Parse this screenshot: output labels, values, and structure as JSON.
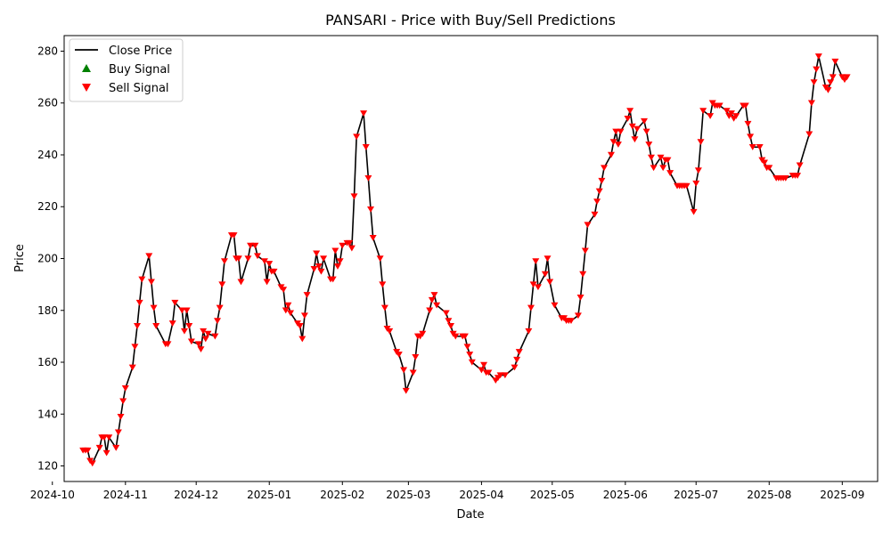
{
  "chart_data": {
    "type": "line",
    "title": "PANSARI - Price with Buy/Sell Predictions",
    "xlabel": "Date",
    "ylabel": "Price",
    "xlim": [
      "2024-10-06",
      "2025-09-16"
    ],
    "ylim": [
      114,
      286
    ],
    "grid": false,
    "legend_position": "top-left",
    "x_ticks": [
      "2024-10",
      "2024-11",
      "2024-12",
      "2025-01",
      "2025-02",
      "2025-03",
      "2025-04",
      "2025-05",
      "2025-06",
      "2025-07",
      "2025-08",
      "2025-09"
    ],
    "x_tick_dates": [
      "2024-10-01",
      "2024-11-01",
      "2024-12-01",
      "2025-01-01",
      "2025-02-01",
      "2025-03-01",
      "2025-04-01",
      "2025-05-01",
      "2025-06-01",
      "2025-07-01",
      "2025-08-01",
      "2025-09-01"
    ],
    "y_ticks": [
      120,
      140,
      160,
      180,
      200,
      220,
      240,
      260,
      280
    ],
    "colors": {
      "close": "#000000",
      "buy": "#008000",
      "sell": "#ff0000"
    },
    "series": [
      {
        "name": "Close Price",
        "kind": "line",
        "points": [
          [
            "2024-10-14",
            126
          ],
          [
            "2024-10-15",
            126
          ],
          [
            "2024-10-16",
            126
          ],
          [
            "2024-10-17",
            122
          ],
          [
            "2024-10-18",
            121
          ],
          [
            "2024-10-21",
            127
          ],
          [
            "2024-10-22",
            131
          ],
          [
            "2024-10-23",
            131
          ],
          [
            "2024-10-24",
            125
          ],
          [
            "2024-10-25",
            131
          ],
          [
            "2024-10-28",
            127
          ],
          [
            "2024-10-29",
            133
          ],
          [
            "2024-10-30",
            139
          ],
          [
            "2024-10-31",
            145
          ],
          [
            "2024-11-01",
            150
          ],
          [
            "2024-11-04",
            158
          ],
          [
            "2024-11-05",
            166
          ],
          [
            "2024-11-06",
            174
          ],
          [
            "2024-11-07",
            183
          ],
          [
            "2024-11-08",
            192
          ],
          [
            "2024-11-11",
            201
          ],
          [
            "2024-11-12",
            191
          ],
          [
            "2024-11-13",
            181
          ],
          [
            "2024-11-14",
            174
          ],
          [
            "2024-11-18",
            167
          ],
          [
            "2024-11-19",
            167
          ],
          [
            "2024-11-21",
            175
          ],
          [
            "2024-11-22",
            183
          ],
          [
            "2024-11-25",
            180
          ],
          [
            "2024-11-26",
            172
          ],
          [
            "2024-11-27",
            180
          ],
          [
            "2024-11-28",
            174
          ],
          [
            "2024-11-29",
            168
          ],
          [
            "2024-12-02",
            167
          ],
          [
            "2024-12-03",
            165
          ],
          [
            "2024-12-04",
            172
          ],
          [
            "2024-12-05",
            169
          ],
          [
            "2024-12-06",
            171
          ],
          [
            "2024-12-09",
            170
          ],
          [
            "2024-12-10",
            176
          ],
          [
            "2024-12-11",
            181
          ],
          [
            "2024-12-12",
            190
          ],
          [
            "2024-12-13",
            199
          ],
          [
            "2024-12-16",
            209
          ],
          [
            "2024-12-17",
            209
          ],
          [
            "2024-12-18",
            200
          ],
          [
            "2024-12-19",
            200
          ],
          [
            "2024-12-20",
            191
          ],
          [
            "2024-12-23",
            200
          ],
          [
            "2024-12-24",
            205
          ],
          [
            "2024-12-26",
            205
          ],
          [
            "2024-12-27",
            201
          ],
          [
            "2024-12-30",
            199
          ],
          [
            "2024-12-31",
            191
          ],
          [
            "2025-01-01",
            198
          ],
          [
            "2025-01-02",
            195
          ],
          [
            "2025-01-03",
            195
          ],
          [
            "2025-01-06",
            189
          ],
          [
            "2025-01-07",
            188
          ],
          [
            "2025-01-08",
            180
          ],
          [
            "2025-01-09",
            182
          ],
          [
            "2025-01-10",
            179
          ],
          [
            "2025-01-13",
            175
          ],
          [
            "2025-01-14",
            174
          ],
          [
            "2025-01-15",
            169
          ],
          [
            "2025-01-16",
            178
          ],
          [
            "2025-01-17",
            186
          ],
          [
            "2025-01-20",
            196
          ],
          [
            "2025-01-21",
            202
          ],
          [
            "2025-01-22",
            197
          ],
          [
            "2025-01-23",
            195
          ],
          [
            "2025-01-24",
            200
          ],
          [
            "2025-01-27",
            192
          ],
          [
            "2025-01-28",
            192
          ],
          [
            "2025-01-29",
            203
          ],
          [
            "2025-01-30",
            197
          ],
          [
            "2025-01-31",
            199
          ],
          [
            "2025-02-01",
            205
          ],
          [
            "2025-02-03",
            206
          ],
          [
            "2025-02-04",
            206
          ],
          [
            "2025-02-05",
            204
          ],
          [
            "2025-02-06",
            224
          ],
          [
            "2025-02-07",
            247
          ],
          [
            "2025-02-10",
            256
          ],
          [
            "2025-02-11",
            243
          ],
          [
            "2025-02-12",
            231
          ],
          [
            "2025-02-13",
            219
          ],
          [
            "2025-02-14",
            208
          ],
          [
            "2025-02-17",
            200
          ],
          [
            "2025-02-18",
            190
          ],
          [
            "2025-02-19",
            181
          ],
          [
            "2025-02-20",
            173
          ],
          [
            "2025-02-21",
            172
          ],
          [
            "2025-02-24",
            164
          ],
          [
            "2025-02-25",
            163
          ],
          [
            "2025-02-27",
            157
          ],
          [
            "2025-02-28",
            149
          ],
          [
            "2025-03-03",
            156
          ],
          [
            "2025-03-04",
            162
          ],
          [
            "2025-03-05",
            170
          ],
          [
            "2025-03-06",
            170
          ],
          [
            "2025-03-07",
            171
          ],
          [
            "2025-03-10",
            180
          ],
          [
            "2025-03-11",
            184
          ],
          [
            "2025-03-12",
            186
          ],
          [
            "2025-03-13",
            182
          ],
          [
            "2025-03-17",
            179
          ],
          [
            "2025-03-18",
            176
          ],
          [
            "2025-03-19",
            174
          ],
          [
            "2025-03-20",
            171
          ],
          [
            "2025-03-21",
            170
          ],
          [
            "2025-03-24",
            170
          ],
          [
            "2025-03-25",
            170
          ],
          [
            "2025-03-26",
            166
          ],
          [
            "2025-03-27",
            163
          ],
          [
            "2025-03-28",
            160
          ],
          [
            "2025-04-01",
            157
          ],
          [
            "2025-04-02",
            159
          ],
          [
            "2025-04-03",
            156
          ],
          [
            "2025-04-04",
            156
          ],
          [
            "2025-04-07",
            153
          ],
          [
            "2025-04-08",
            154
          ],
          [
            "2025-04-09",
            155
          ],
          [
            "2025-04-11",
            155
          ],
          [
            "2025-04-15",
            158
          ],
          [
            "2025-04-16",
            161
          ],
          [
            "2025-04-17",
            164
          ],
          [
            "2025-04-21",
            172
          ],
          [
            "2025-04-22",
            181
          ],
          [
            "2025-04-23",
            190
          ],
          [
            "2025-04-24",
            199
          ],
          [
            "2025-04-25",
            189
          ],
          [
            "2025-04-28",
            194
          ],
          [
            "2025-04-29",
            200
          ],
          [
            "2025-04-30",
            191
          ],
          [
            "2025-05-02",
            182
          ],
          [
            "2025-05-05",
            177
          ],
          [
            "2025-05-06",
            177
          ],
          [
            "2025-05-07",
            176
          ],
          [
            "2025-05-08",
            176
          ],
          [
            "2025-05-09",
            176
          ],
          [
            "2025-05-12",
            178
          ],
          [
            "2025-05-13",
            185
          ],
          [
            "2025-05-14",
            194
          ],
          [
            "2025-05-15",
            203
          ],
          [
            "2025-05-16",
            213
          ],
          [
            "2025-05-19",
            217
          ],
          [
            "2025-05-20",
            222
          ],
          [
            "2025-05-21",
            226
          ],
          [
            "2025-05-22",
            230
          ],
          [
            "2025-05-23",
            235
          ],
          [
            "2025-05-26",
            240
          ],
          [
            "2025-05-27",
            245
          ],
          [
            "2025-05-28",
            249
          ],
          [
            "2025-05-29",
            244
          ],
          [
            "2025-05-30",
            249
          ],
          [
            "2025-06-02",
            254
          ],
          [
            "2025-06-03",
            257
          ],
          [
            "2025-06-04",
            251
          ],
          [
            "2025-06-05",
            246
          ],
          [
            "2025-06-06",
            250
          ],
          [
            "2025-06-09",
            253
          ],
          [
            "2025-06-10",
            249
          ],
          [
            "2025-06-11",
            244
          ],
          [
            "2025-06-12",
            239
          ],
          [
            "2025-06-13",
            235
          ],
          [
            "2025-06-16",
            239
          ],
          [
            "2025-06-17",
            235
          ],
          [
            "2025-06-18",
            238
          ],
          [
            "2025-06-19",
            238
          ],
          [
            "2025-06-20",
            233
          ],
          [
            "2025-06-23",
            228
          ],
          [
            "2025-06-24",
            228
          ],
          [
            "2025-06-25",
            228
          ],
          [
            "2025-06-26",
            228
          ],
          [
            "2025-06-27",
            228
          ],
          [
            "2025-06-30",
            218
          ],
          [
            "2025-07-01",
            229
          ],
          [
            "2025-07-02",
            234
          ],
          [
            "2025-07-03",
            245
          ],
          [
            "2025-07-04",
            257
          ],
          [
            "2025-07-07",
            255
          ],
          [
            "2025-07-08",
            260
          ],
          [
            "2025-07-09",
            259
          ],
          [
            "2025-07-10",
            259
          ],
          [
            "2025-07-11",
            259
          ],
          [
            "2025-07-14",
            257
          ],
          [
            "2025-07-15",
            255
          ],
          [
            "2025-07-16",
            256
          ],
          [
            "2025-07-17",
            254
          ],
          [
            "2025-07-18",
            255
          ],
          [
            "2025-07-21",
            259
          ],
          [
            "2025-07-22",
            259
          ],
          [
            "2025-07-23",
            252
          ],
          [
            "2025-07-24",
            247
          ],
          [
            "2025-07-25",
            243
          ],
          [
            "2025-07-28",
            243
          ],
          [
            "2025-07-29",
            238
          ],
          [
            "2025-07-30",
            237
          ],
          [
            "2025-07-31",
            235
          ],
          [
            "2025-08-01",
            235
          ],
          [
            "2025-08-04",
            231
          ],
          [
            "2025-08-05",
            231
          ],
          [
            "2025-08-06",
            231
          ],
          [
            "2025-08-07",
            231
          ],
          [
            "2025-08-08",
            231
          ],
          [
            "2025-08-11",
            232
          ],
          [
            "2025-08-12",
            232
          ],
          [
            "2025-08-13",
            232
          ],
          [
            "2025-08-14",
            236
          ],
          [
            "2025-08-18",
            248
          ],
          [
            "2025-08-19",
            260
          ],
          [
            "2025-08-20",
            268
          ],
          [
            "2025-08-21",
            273
          ],
          [
            "2025-08-22",
            278
          ],
          [
            "2025-08-25",
            266
          ],
          [
            "2025-08-26",
            265
          ],
          [
            "2025-08-27",
            268
          ],
          [
            "2025-08-28",
            270
          ],
          [
            "2025-08-29",
            276
          ],
          [
            "2025-09-01",
            270
          ],
          [
            "2025-09-02",
            269
          ],
          [
            "2025-09-03",
            270
          ]
        ]
      },
      {
        "name": "Buy Signal",
        "kind": "marker",
        "marker": "triangle-up",
        "points": []
      },
      {
        "name": "Sell Signal",
        "kind": "marker",
        "marker": "triangle-down",
        "points": "same as Close Price points"
      }
    ]
  }
}
